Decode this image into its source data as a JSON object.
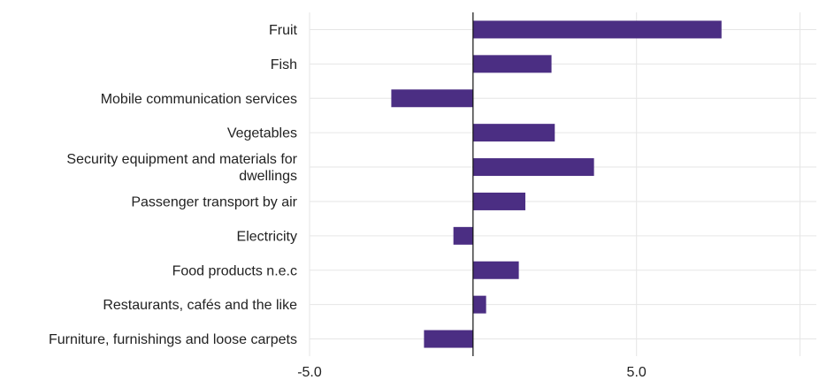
{
  "chart_data": {
    "type": "bar",
    "orientation": "horizontal",
    "categories": [
      [
        "Fruit"
      ],
      [
        "Fish"
      ],
      [
        "Mobile communication services"
      ],
      [
        "Vegetables"
      ],
      [
        "Security equipment and materials for",
        "dwellings"
      ],
      [
        "Passenger transport by air"
      ],
      [
        "Electricity"
      ],
      [
        "Food products n.e.c"
      ],
      [
        "Restaurants, cafés and the like"
      ],
      [
        "Furniture, furnishings and loose carpets"
      ]
    ],
    "values": [
      7.6,
      2.4,
      -2.5,
      2.5,
      3.7,
      1.6,
      -0.6,
      1.4,
      0.4,
      -1.5
    ],
    "xlim": [
      -5,
      10.5
    ],
    "x_ticks": [
      -5.0,
      5.0
    ],
    "x_tick_labels": [
      "-5.0",
      "5.0"
    ],
    "x_grid": [
      -5,
      0,
      5,
      10
    ],
    "bar_color": "#4b2e83",
    "grid": true,
    "legend": "none",
    "title": "",
    "xlabel": "",
    "ylabel": ""
  }
}
